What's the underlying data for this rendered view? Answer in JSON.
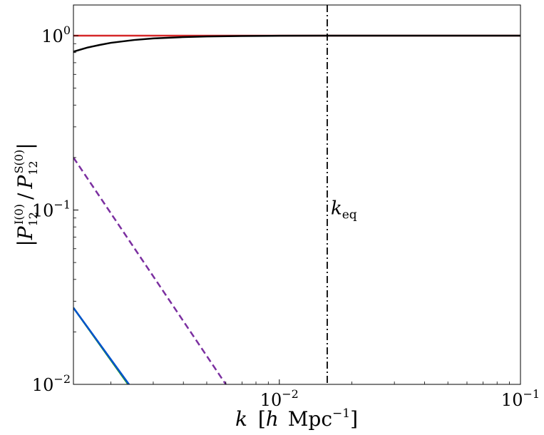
{
  "chart_data": {
    "type": "line",
    "xlabel": {
      "k": "k",
      "open": "[",
      "h": "h",
      "unit": "Mpc",
      "exp": "−1",
      "close": "]"
    },
    "ylabel": {
      "bar_open": "|",
      "p_num": "P",
      "num_sub": "12",
      "num_sup": "I(0)",
      "slash": "/",
      "p_den": "P",
      "den_sub": "12",
      "den_sup": "S(0)",
      "bar_close": "|"
    },
    "xscale": "log",
    "yscale": "log",
    "xlim": [
      0.0014,
      0.1
    ],
    "ylim": [
      0.01,
      1.5
    ],
    "grid": false,
    "x_ticks": [
      {
        "value": 0.01,
        "base": "10",
        "exp": "−2"
      },
      {
        "value": 0.1,
        "base": "10",
        "exp": "−1"
      }
    ],
    "y_ticks": [
      {
        "value": 0.01,
        "base": "10",
        "exp": "−2"
      },
      {
        "value": 0.1,
        "base": "10",
        "exp": "−1"
      },
      {
        "value": 1,
        "base": "10",
        "exp": "0"
      }
    ],
    "series": [
      {
        "color": "#d62728",
        "style": "solid",
        "x": [
          0.0014,
          0.1
        ],
        "y": [
          1.0,
          1.0
        ]
      },
      {
        "color": "#000000",
        "style": "solid",
        "x": [
          0.0014,
          0.0016,
          0.0018,
          0.002,
          0.0025,
          0.003,
          0.004,
          0.005,
          0.007,
          0.01,
          0.015,
          0.03,
          0.1
        ],
        "y": [
          0.81,
          0.855,
          0.885,
          0.91,
          0.945,
          0.965,
          0.982,
          0.99,
          0.996,
          0.999,
          1.0,
          1.0,
          1.0
        ]
      },
      {
        "color": "#7b2fa0",
        "style": "dashed",
        "x": [
          0.0014,
          0.006
        ],
        "y": [
          0.2,
          0.01
        ]
      },
      {
        "color": "#2ca02c",
        "style": "solid",
        "x": [
          0.0014,
          0.00236
        ],
        "y": [
          0.0275,
          0.01
        ]
      },
      {
        "color": "#0052cc",
        "style": "solid",
        "x": [
          0.0014,
          0.00238
        ],
        "y": [
          0.0275,
          0.01
        ]
      }
    ],
    "vlines": [
      {
        "x": 0.0158,
        "color": "#000000",
        "style": "dashdot",
        "label_main": "k",
        "label_sub": "eq",
        "label_y": 0.1
      }
    ]
  }
}
